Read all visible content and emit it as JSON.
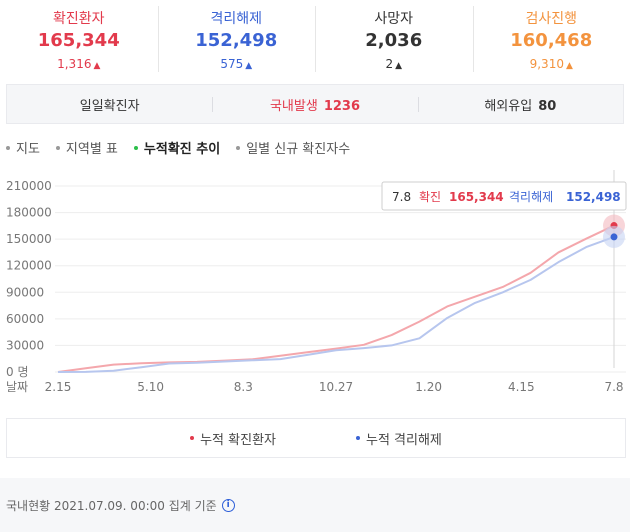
{
  "summary": [
    {
      "label": "확진환자",
      "value": "165,344",
      "change": "1,316",
      "color": "#e23a4c"
    },
    {
      "label": "격리해제",
      "value": "152,498",
      "change": "575",
      "color": "#3a63d4"
    },
    {
      "label": "사망자",
      "value": "2,036",
      "change": "2",
      "color": "#333333"
    },
    {
      "label": "검사진행",
      "value": "160,468",
      "change": "9,310",
      "color": "#f3933e"
    }
  ],
  "daily": {
    "label": "일일확진자",
    "domestic_label": "국내발생",
    "domestic_value": "1236",
    "overseas_label": "해외유입",
    "overseas_value": "80"
  },
  "tabs": [
    {
      "label": "지도",
      "active": false
    },
    {
      "label": "지역별 표",
      "active": false
    },
    {
      "label": "누적확진 추이",
      "active": true
    },
    {
      "label": "일별 신규 확진자수",
      "active": false
    }
  ],
  "tooltip": {
    "date": "7.8",
    "confirmed_label": "확진",
    "confirmed_value": "165,344",
    "released_label": "격리해제",
    "released_value": "152,498"
  },
  "legend": [
    {
      "label": "누적 확진환자",
      "color": "#e23a4c"
    },
    {
      "label": "누적 격리해제",
      "color": "#3a63d4"
    }
  ],
  "footer": {
    "text": "국내현황 2021.07.09. 00:00 집계 기준"
  },
  "chart_data": {
    "type": "line",
    "x_axis_label": "날짜",
    "x_tick_labels": [
      "2.15",
      "5.10",
      "8.3",
      "10.27",
      "1.20",
      "4.15",
      "7.8"
    ],
    "y_unit": "명",
    "y_ticks": [
      0,
      30000,
      60000,
      90000,
      120000,
      150000,
      180000,
      210000
    ],
    "ylim": [
      0,
      210000
    ],
    "series": [
      {
        "name": "누적 확진환자",
        "color": "#f4a7ac",
        "x": [
          "2.15",
          "3.1",
          "3.15",
          "4.1",
          "5.10",
          "6.1",
          "7.1",
          "8.3",
          "8.25",
          "9.15",
          "10.27",
          "11.20",
          "12.10",
          "12.25",
          "1.20",
          "2.15",
          "3.15",
          "4.15",
          "5.15",
          "6.15",
          "7.8"
        ],
        "values": [
          30,
          4200,
          8300,
          9900,
          10900,
          11500,
          12900,
          14400,
          18300,
          22500,
          26400,
          30700,
          41700,
          56900,
          74000,
          85000,
          96000,
          112000,
          135000,
          150500,
          165344
        ]
      },
      {
        "name": "누적 격리해제",
        "color": "#b7c6ee",
        "x": [
          "2.15",
          "3.1",
          "3.15",
          "4.1",
          "5.10",
          "6.1",
          "7.1",
          "8.3",
          "8.25",
          "9.15",
          "10.27",
          "11.20",
          "12.10",
          "12.25",
          "1.20",
          "2.15",
          "3.15",
          "4.15",
          "5.15",
          "6.15",
          "7.8"
        ],
        "values": [
          0,
          100,
          1400,
          5400,
          9600,
          10500,
          11800,
          13200,
          14500,
          19500,
          24500,
          27000,
          30000,
          38000,
          61000,
          78000,
          90000,
          104000,
          124000,
          141000,
          152498
        ]
      }
    ]
  }
}
